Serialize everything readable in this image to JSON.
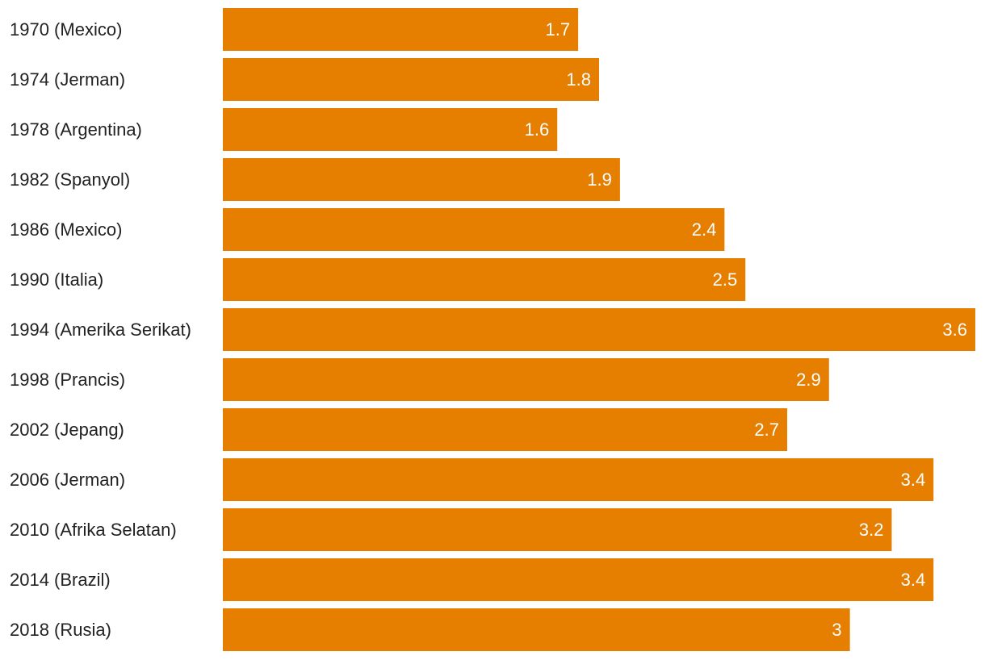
{
  "chart_data": {
    "type": "bar",
    "orientation": "horizontal",
    "categories": [
      "1970 (Mexico)",
      "1974 (Jerman)",
      "1978 (Argentina)",
      "1982 (Spanyol)",
      "1986 (Mexico)",
      "1990 (Italia)",
      "1994 (Amerika Serikat)",
      "1998 (Prancis)",
      "2002 (Jepang)",
      "2006 (Jerman)",
      "2010 (Afrika Selatan)",
      "2014 (Brazil)",
      "2018 (Rusia)"
    ],
    "values": [
      1.7,
      1.8,
      1.6,
      1.9,
      2.4,
      2.5,
      3.6,
      2.9,
      2.7,
      3.4,
      3.2,
      3.4,
      3
    ],
    "value_labels": [
      "1.7",
      "1.8",
      "1.6",
      "1.9",
      "2.4",
      "2.5",
      "3.6",
      "2.9",
      "2.7",
      "3.4",
      "3.2",
      "3.4",
      "3"
    ],
    "xlim": [
      0,
      3.6
    ],
    "bar_color": "#E67E00",
    "label_color": "#222222",
    "value_label_color": "#FFFFFF",
    "grid": false,
    "legend": "none",
    "title": "",
    "xlabel": "",
    "ylabel": ""
  }
}
